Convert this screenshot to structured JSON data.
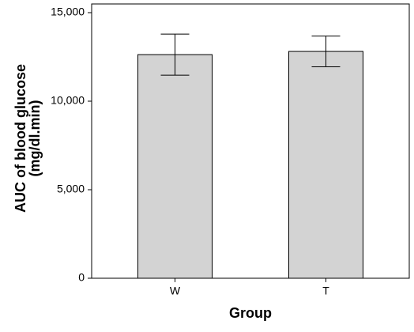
{
  "chart_data": {
    "type": "bar",
    "xlabel": "Group",
    "ylabel": [
      "AUC of  blood glucose",
      "(mg/dl.min)"
    ],
    "categories": [
      "W",
      "T"
    ],
    "values": [
      12630,
      12810
    ],
    "errors": [
      1160,
      870
    ],
    "color": "#d3d3d3",
    "ylim": [
      0,
      15000
    ],
    "yticks": [
      0,
      {
        "value": 5000,
        "label": "5,000"
      },
      {
        "value": 10000,
        "label": "10,000"
      },
      {
        "value": 15000,
        "label": "15,000"
      }
    ],
    "grid": false
  }
}
